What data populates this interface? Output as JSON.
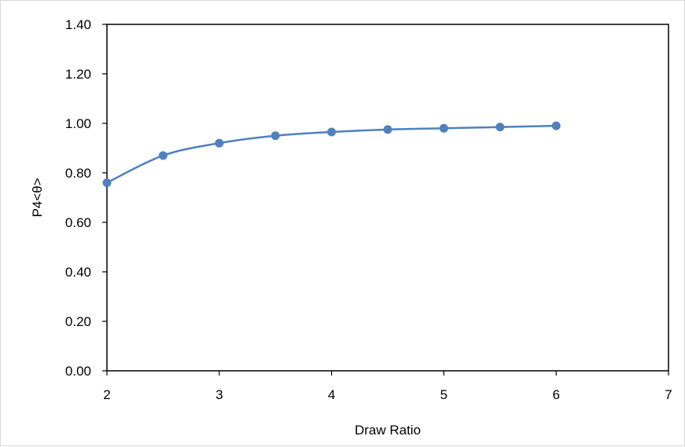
{
  "chart_data": {
    "type": "line",
    "title": "",
    "xlabel": "Draw Ratio",
    "ylabel": "P4<θ>",
    "xlim": [
      2,
      7
    ],
    "ylim": [
      0,
      1.4
    ],
    "x_ticks": [
      "2",
      "3",
      "4",
      "5",
      "6",
      "7"
    ],
    "y_ticks": [
      "0.00",
      "0.20",
      "0.40",
      "0.60",
      "0.80",
      "1.00",
      "1.20",
      "1.40"
    ],
    "grid": false,
    "legend": "none",
    "series": [
      {
        "color": "#4f81bd",
        "smooth": true,
        "x": [
          2,
          2.5,
          3,
          3.5,
          4,
          4.5,
          5,
          5.5,
          6
        ],
        "y": [
          0.76,
          0.87,
          0.92,
          0.95,
          0.965,
          0.975,
          0.98,
          0.985,
          0.99
        ]
      }
    ]
  }
}
